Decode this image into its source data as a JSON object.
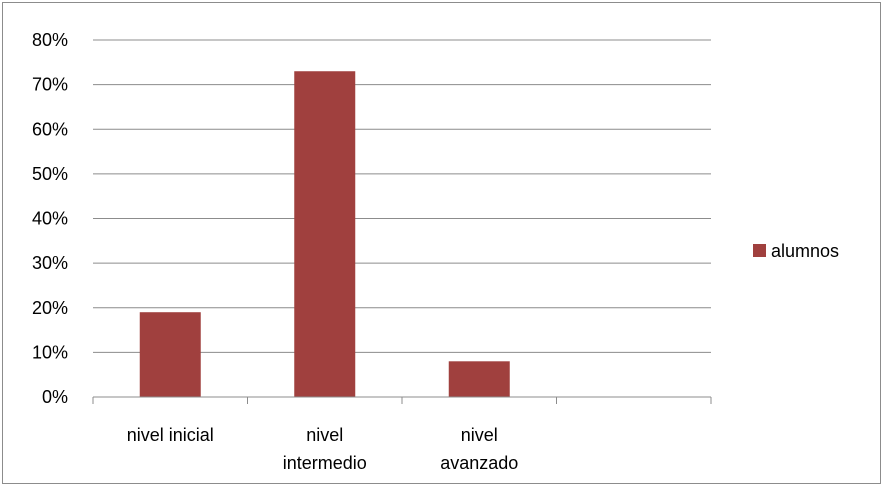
{
  "chart_data": {
    "type": "bar",
    "categories": [
      [
        "nivel inicial"
      ],
      [
        "nivel",
        "intermedio"
      ],
      [
        "nivel",
        "avanzado"
      ],
      [
        ""
      ]
    ],
    "series": [
      {
        "name": "alumnos",
        "values": [
          19,
          73,
          8,
          null
        ],
        "color": "#a0403e"
      }
    ],
    "ylim": [
      0,
      80
    ],
    "yticks": [
      0,
      10,
      20,
      30,
      40,
      50,
      60,
      70,
      80
    ],
    "ytick_format": "percent",
    "grid": true,
    "legend": "right",
    "title": "",
    "xlabel": "",
    "ylabel": ""
  }
}
